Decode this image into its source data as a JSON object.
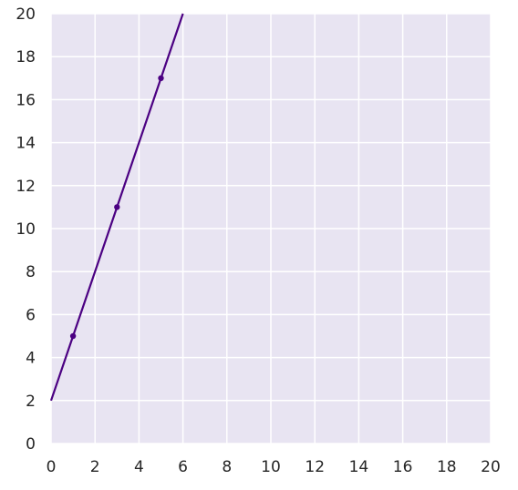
{
  "colors": {
    "plot_background": "#e8e4f2",
    "grid": "#ffffff",
    "line": "#4b0082",
    "text": "#262626"
  },
  "chart_data": {
    "type": "line",
    "title": "",
    "xlabel": "",
    "ylabel": "",
    "xlim": [
      0,
      20
    ],
    "ylim": [
      0,
      20
    ],
    "xticks": [
      0,
      2,
      4,
      6,
      8,
      10,
      12,
      14,
      16,
      18,
      20
    ],
    "yticks": [
      0,
      2,
      4,
      6,
      8,
      10,
      12,
      14,
      16,
      18,
      20
    ],
    "grid": true,
    "series": [
      {
        "line": {
          "slope": 3,
          "intercept": 2
        },
        "points": [
          {
            "x": 1,
            "y": 5
          },
          {
            "x": 3,
            "y": 11
          },
          {
            "x": 5,
            "y": 17
          }
        ]
      }
    ]
  }
}
